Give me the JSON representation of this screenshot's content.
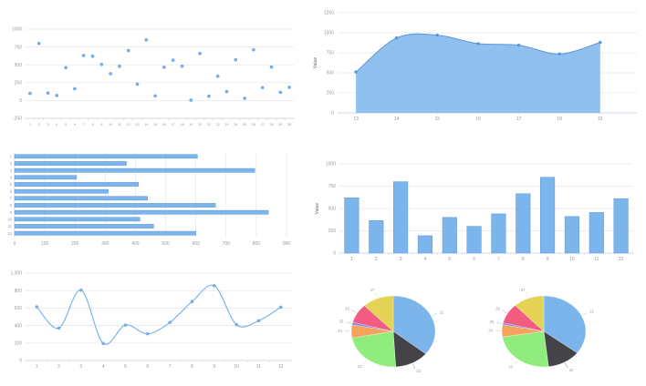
{
  "page": {
    "background": "#ffffff"
  },
  "palette": {
    "series_blue": "#7cb5ec",
    "series_blue_border": "#5a96d8",
    "grid_color": "#e6e6e6",
    "axis_color": "#d3d3d3",
    "axis_color_blue": "#ccd6eb",
    "tick_text_color": "#999999",
    "label_text_color": "#666666",
    "pie_colors": [
      "#7cb5ec",
      "#434348",
      "#90ed7d",
      "#f7a35c",
      "#8085e9",
      "#f15c80",
      "#e4d354"
    ]
  },
  "chart_data": [
    {
      "id": "scatter-chart",
      "type": "scatter",
      "title": "",
      "xlabel": "",
      "ylabel": "",
      "x": [
        1,
        2,
        3,
        4,
        5,
        6,
        7,
        8,
        9,
        10,
        11,
        12,
        13,
        14,
        15,
        16,
        17,
        18,
        19,
        20,
        21,
        22,
        23,
        24,
        25,
        26,
        27,
        28,
        29,
        30
      ],
      "xtick_labels": [
        "1",
        "2",
        "3",
        "4",
        "5",
        "6",
        "7",
        "8",
        "9",
        "10",
        "11",
        "12",
        "13",
        "14",
        "15",
        "16",
        "17",
        "18",
        "19",
        "20",
        "21",
        "22",
        "23",
        "24",
        "25",
        "26",
        "27",
        "28",
        "29",
        "30"
      ],
      "values": [
        100,
        800,
        105,
        70,
        460,
        165,
        630,
        620,
        505,
        375,
        480,
        700,
        230,
        850,
        65,
        465,
        565,
        480,
        5,
        660,
        60,
        340,
        125,
        570,
        30,
        710,
        180,
        470,
        115,
        185
      ],
      "ylim": [
        -250,
        1000
      ],
      "yticks": [
        -250,
        0,
        250,
        500,
        750,
        1000
      ],
      "ytick_labels": [
        "-250",
        "0",
        "250",
        "500",
        "750",
        "1000"
      ],
      "grid": true,
      "legend": "none"
    },
    {
      "id": "area-chart",
      "type": "area",
      "title": "",
      "xlabel": "",
      "ylabel": "Value",
      "x": [
        13,
        14,
        15,
        16,
        17,
        18,
        19
      ],
      "xtick_labels": [
        "13",
        "14",
        "15",
        "16",
        "17",
        "18",
        "19"
      ],
      "values": [
        510,
        935,
        970,
        865,
        845,
        735,
        880
      ],
      "ylim": [
        0,
        1250
      ],
      "yticks": [
        0,
        250,
        500,
        750,
        1000,
        1250
      ],
      "ytick_labels": [
        "0",
        "250",
        "500",
        "750",
        "1000",
        "1250"
      ],
      "grid": true,
      "legend": "none"
    },
    {
      "id": "hbar-chart",
      "type": "bar-horizontal",
      "title": "",
      "xlabel": "",
      "ylabel": "",
      "categories": [
        "1",
        "2",
        "3",
        "4",
        "5",
        "6",
        "7",
        "8",
        "9",
        "10",
        "11",
        "12"
      ],
      "values": [
        605,
        370,
        795,
        205,
        410,
        310,
        440,
        665,
        840,
        415,
        460,
        600
      ],
      "xlim": [
        0,
        900
      ],
      "xticks": [
        0,
        100,
        200,
        300,
        400,
        500,
        600,
        700,
        800,
        900
      ],
      "xtick_labels": [
        "0",
        "100",
        "200",
        "300",
        "400",
        "500",
        "600",
        "700",
        "800",
        "900"
      ],
      "grid": true,
      "legend": "none"
    },
    {
      "id": "vbar-chart",
      "type": "bar",
      "title": "",
      "xlabel": "",
      "ylabel": "Value",
      "categories": [
        "1",
        "2",
        "3",
        "4",
        "5",
        "6",
        "7",
        "8",
        "9",
        "10",
        "11",
        "12"
      ],
      "values": [
        620,
        365,
        800,
        195,
        400,
        300,
        440,
        665,
        850,
        410,
        455,
        610
      ],
      "ylim": [
        0,
        1000
      ],
      "yticks": [
        0,
        250,
        500,
        750,
        1000
      ],
      "ytick_labels": [
        "0",
        "250",
        "500",
        "750",
        "1000"
      ],
      "grid": true,
      "legend": "none"
    },
    {
      "id": "line-chart",
      "type": "line",
      "title": "",
      "xlabel": "",
      "ylabel": "",
      "x": [
        1,
        2,
        3,
        4,
        5,
        6,
        7,
        8,
        9,
        10,
        11,
        12
      ],
      "xtick_labels": [
        "1",
        "2",
        "3",
        "4",
        "5",
        "6",
        "7",
        "8",
        "9",
        "10",
        "11",
        "12"
      ],
      "values": [
        615,
        370,
        805,
        195,
        405,
        305,
        435,
        675,
        855,
        410,
        455,
        610
      ],
      "ylim": [
        0,
        1000
      ],
      "yticks": [
        0,
        200,
        400,
        600,
        800,
        1000
      ],
      "ytick_labels": [
        "0",
        "200",
        "400",
        "600",
        "800",
        "1,000"
      ],
      "grid": true,
      "legend": "none"
    },
    {
      "id": "pie-chart-left",
      "type": "pie",
      "title": "",
      "labels": [
        "21",
        "22",
        "23",
        "24",
        "25",
        "26",
        "27"
      ],
      "values": [
        850,
        310,
        545,
        140,
        25,
        210,
        285
      ],
      "colors": [
        "#7cb5ec",
        "#434348",
        "#90ed7d",
        "#f7a35c",
        "#8085e9",
        "#f15c80",
        "#e4d354"
      ],
      "legend": "none"
    },
    {
      "id": "pie-chart-right",
      "type": "pie",
      "title": "",
      "labels": [
        "21",
        "22",
        "23",
        "24",
        "25",
        "26",
        "27"
      ],
      "values": [
        830,
        300,
        570,
        130,
        20,
        215,
        280
      ],
      "colors": [
        "#7cb5ec",
        "#434348",
        "#90ed7d",
        "#f7a35c",
        "#8085e9",
        "#f15c80",
        "#e4d354"
      ],
      "legend": "none"
    }
  ]
}
